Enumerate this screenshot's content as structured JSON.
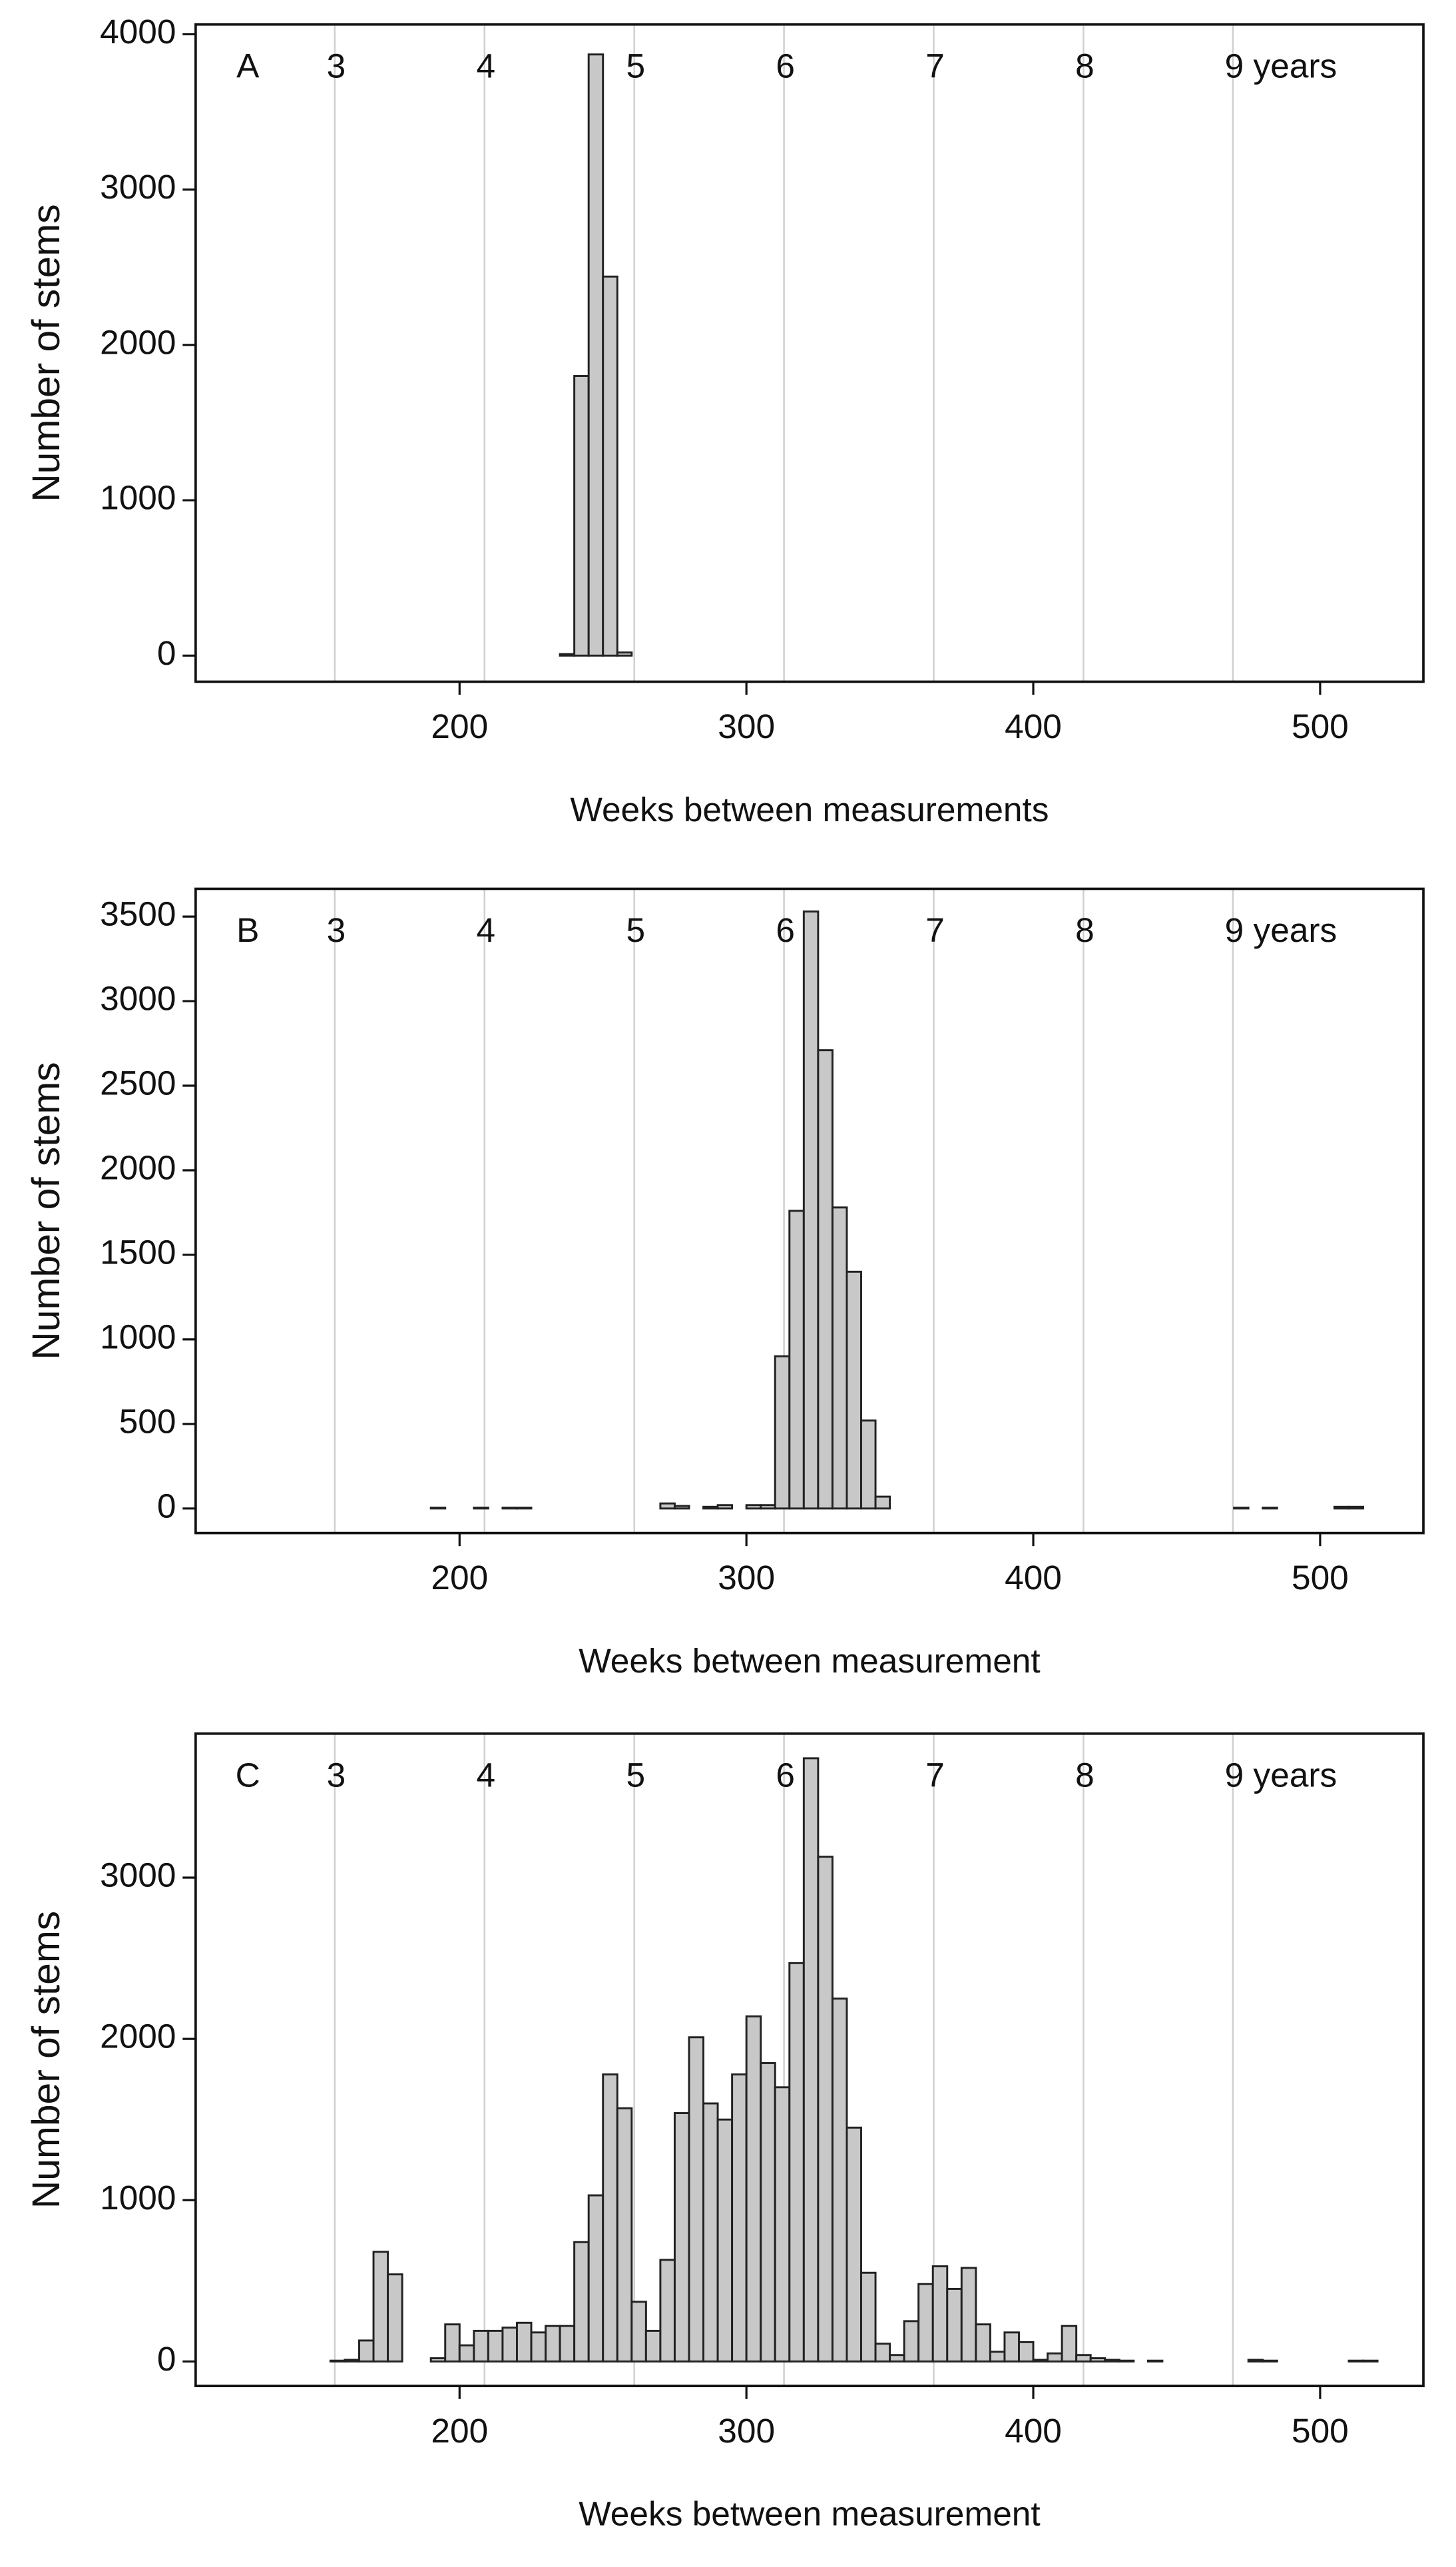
{
  "chart_data": [
    {
      "type": "histogram",
      "panel_label": "A",
      "x_label": "Weeks between measurements",
      "y_label": "Number of stems",
      "bins": [
        130,
        135,
        140,
        145,
        150,
        155,
        160,
        165,
        170,
        175,
        180,
        185,
        190,
        195,
        200,
        205,
        210,
        215,
        220,
        225,
        230,
        235,
        240,
        245,
        250,
        255,
        260,
        265,
        270,
        275,
        280,
        285,
        290,
        295,
        300,
        305,
        310,
        315,
        320,
        325,
        330,
        335,
        340,
        345,
        350,
        355,
        360,
        365,
        370,
        375,
        380,
        385,
        390,
        395,
        400,
        405,
        410,
        415,
        420,
        425,
        430,
        435,
        440,
        445,
        450,
        455,
        460,
        465,
        470,
        475,
        480,
        485,
        490,
        495,
        500,
        505,
        510,
        515,
        520
      ],
      "values": [
        0,
        0,
        0,
        0,
        0,
        0,
        0,
        0,
        0,
        0,
        0,
        0,
        0,
        0,
        0,
        0,
        0,
        0,
        0,
        0,
        0,
        10,
        1800,
        3870,
        2440,
        20,
        0,
        0,
        0,
        0,
        0,
        0,
        0,
        0,
        0,
        0,
        0,
        0,
        0,
        0,
        0,
        0,
        0,
        0,
        0,
        0,
        0,
        0,
        0,
        0,
        0,
        0,
        0,
        0,
        0,
        0,
        0,
        0,
        0,
        0,
        0,
        0,
        0,
        0,
        0,
        0,
        0,
        0,
        0,
        0,
        0,
        0,
        0,
        0,
        0,
        0,
        0,
        0
      ],
      "xlim": [
        108,
        536
      ],
      "ylim": [
        -168,
        4063
      ],
      "xticks": [
        200,
        300,
        400,
        500
      ],
      "yticks": [
        0,
        1000,
        2000,
        3000,
        4000
      ],
      "year_marks": [
        {
          "value": 156.5,
          "label": "3"
        },
        {
          "value": 208.7,
          "label": "4"
        },
        {
          "value": 260.9,
          "label": "5"
        },
        {
          "value": 313.1,
          "label": "6"
        },
        {
          "value": 365.3,
          "label": "7"
        },
        {
          "value": 417.5,
          "label": "8"
        },
        {
          "value": 469.6,
          "label": "9 years"
        }
      ],
      "color": "#c8c8c8"
    },
    {
      "type": "histogram",
      "panel_label": "B",
      "x_label": "Weeks between measurement",
      "y_label": "Number of stems",
      "bins": [
        130,
        135,
        140,
        145,
        150,
        155,
        160,
        165,
        170,
        175,
        180,
        185,
        190,
        195,
        200,
        205,
        210,
        215,
        220,
        225,
        230,
        235,
        240,
        245,
        250,
        255,
        260,
        265,
        270,
        275,
        280,
        285,
        290,
        295,
        300,
        305,
        310,
        315,
        320,
        325,
        330,
        335,
        340,
        345,
        350,
        355,
        360,
        365,
        370,
        375,
        380,
        385,
        390,
        395,
        400,
        405,
        410,
        415,
        420,
        425,
        430,
        435,
        440,
        445,
        450,
        455,
        460,
        465,
        470,
        475,
        480,
        485,
        490,
        495,
        500,
        505,
        510,
        515,
        520
      ],
      "values": [
        0,
        0,
        0,
        0,
        0,
        0,
        0,
        0,
        0,
        0,
        0,
        0,
        5,
        0,
        0,
        5,
        0,
        5,
        5,
        0,
        0,
        0,
        0,
        0,
        0,
        0,
        0,
        0,
        30,
        15,
        0,
        10,
        20,
        0,
        20,
        20,
        900,
        1760,
        3530,
        2710,
        1780,
        1400,
        520,
        70,
        0,
        0,
        0,
        0,
        0,
        0,
        0,
        0,
        0,
        0,
        0,
        0,
        0,
        0,
        0,
        0,
        0,
        0,
        0,
        0,
        0,
        0,
        0,
        0,
        5,
        0,
        5,
        0,
        0,
        0,
        0,
        10,
        10,
        0
      ],
      "xlim": [
        108,
        536
      ],
      "ylim": [
        -145,
        3664
      ],
      "xticks": [
        200,
        300,
        400,
        500
      ],
      "yticks": [
        0,
        500,
        1000,
        1500,
        2000,
        2500,
        3000,
        3500
      ],
      "year_marks": [
        {
          "value": 156.5,
          "label": "3"
        },
        {
          "value": 208.7,
          "label": "4"
        },
        {
          "value": 260.9,
          "label": "5"
        },
        {
          "value": 313.1,
          "label": "6"
        },
        {
          "value": 365.3,
          "label": "7"
        },
        {
          "value": 417.5,
          "label": "8"
        },
        {
          "value": 469.6,
          "label": "9 years"
        }
      ],
      "color": "#c8c8c8"
    },
    {
      "type": "histogram",
      "panel_label": "C",
      "x_label": "Weeks between measurement",
      "y_label": "Number of stems",
      "bins": [
        130,
        135,
        140,
        145,
        150,
        155,
        160,
        165,
        170,
        175,
        180,
        185,
        190,
        195,
        200,
        205,
        210,
        215,
        220,
        225,
        230,
        235,
        240,
        245,
        250,
        255,
        260,
        265,
        270,
        275,
        280,
        285,
        290,
        295,
        300,
        305,
        310,
        315,
        320,
        325,
        330,
        335,
        340,
        345,
        350,
        355,
        360,
        365,
        370,
        375,
        380,
        385,
        390,
        395,
        400,
        405,
        410,
        415,
        420,
        425,
        430,
        435,
        440,
        445,
        450,
        455,
        460,
        465,
        470,
        475,
        480,
        485,
        490,
        495,
        500,
        505,
        510,
        515,
        520
      ],
      "values": [
        0,
        0,
        0,
        0,
        0,
        5,
        10,
        130,
        680,
        540,
        0,
        0,
        20,
        230,
        100,
        190,
        190,
        210,
        240,
        180,
        220,
        220,
        740,
        1030,
        1780,
        1570,
        370,
        190,
        630,
        1540,
        2010,
        1600,
        1500,
        1780,
        2140,
        1850,
        1700,
        2470,
        3740,
        3130,
        2250,
        1450,
        550,
        110,
        40,
        250,
        480,
        590,
        450,
        580,
        230,
        60,
        180,
        120,
        10,
        50,
        220,
        40,
        20,
        10,
        5,
        0,
        5,
        0,
        0,
        0,
        0,
        0,
        0,
        10,
        5,
        0,
        0,
        0,
        0,
        0,
        5,
        5
      ],
      "xlim": [
        108,
        536
      ],
      "ylim": [
        -152,
        3893
      ],
      "xticks": [
        200,
        300,
        400,
        500
      ],
      "yticks": [
        0,
        1000,
        2000,
        3000
      ],
      "year_marks": [
        {
          "value": 156.5,
          "label": "3"
        },
        {
          "value": 208.7,
          "label": "4"
        },
        {
          "value": 260.9,
          "label": "5"
        },
        {
          "value": 313.1,
          "label": "6"
        },
        {
          "value": 365.3,
          "label": "7"
        },
        {
          "value": 417.5,
          "label": "8"
        },
        {
          "value": 469.6,
          "label": "9 years"
        }
      ],
      "color": "#c8c8c8"
    }
  ]
}
